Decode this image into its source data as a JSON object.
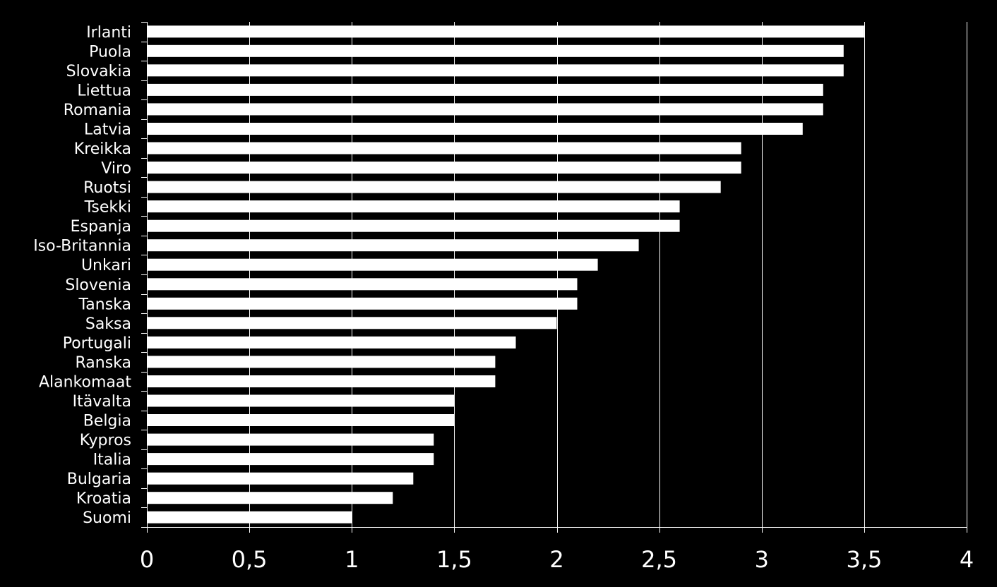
{
  "colors": {
    "background": "#000000",
    "bar": "#ffffff",
    "text": "#ffffff",
    "grid": "#ffffff",
    "axis": "#ffffff"
  },
  "chart_data": {
    "type": "bar",
    "orientation": "horizontal",
    "title": "",
    "xlabel": "",
    "ylabel": "",
    "xlim": [
      0,
      4
    ],
    "x_ticks": [
      0,
      0.5,
      1,
      1.5,
      2,
      2.5,
      3,
      3.5,
      4
    ],
    "x_tick_labels": [
      "0",
      "0,5",
      "1",
      "1,5",
      "2",
      "2,5",
      "3",
      "3,5",
      "4"
    ],
    "grid": "vertical major gridlines",
    "legend": "none",
    "categories": [
      "Irlanti",
      "Puola",
      "Slovakia",
      "Liettua",
      "Romania",
      "Latvia",
      "Kreikka",
      "Viro",
      "Ruotsi",
      "Tsekki",
      "Espanja",
      "Iso-Britannia",
      "Unkari",
      "Slovenia",
      "Tanska",
      "Saksa",
      "Portugali",
      "Ranska",
      "Alankomaat",
      "Itävalta",
      "Belgia",
      "Kypros",
      "Italia",
      "Bulgaria",
      "Kroatia",
      "Suomi"
    ],
    "values": [
      3.5,
      3.4,
      3.4,
      3.3,
      3.3,
      3.2,
      2.9,
      2.9,
      2.8,
      2.6,
      2.6,
      2.4,
      2.2,
      2.1,
      2.1,
      2.0,
      1.8,
      1.7,
      1.7,
      1.5,
      1.5,
      1.4,
      1.4,
      1.3,
      1.2,
      1.0
    ]
  }
}
